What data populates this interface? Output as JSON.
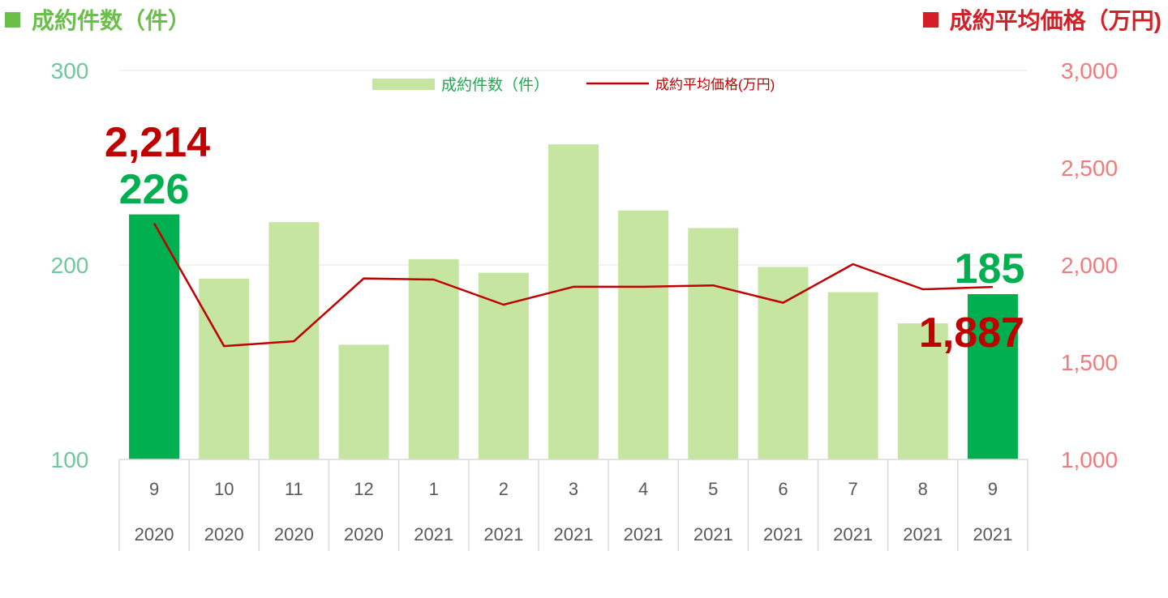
{
  "header": {
    "left_title": "成約件数（件）",
    "right_title": "成約平均価格（万円)"
  },
  "colors": {
    "bar": "#c5e5a0",
    "bar_highlight": "#00b050",
    "line": "#c00000",
    "left_axis": "#6cc99b",
    "right_axis": "#f07b7b"
  },
  "chart_data": {
    "type": "bar",
    "title": "",
    "categories": [
      "9",
      "10",
      "11",
      "12",
      "1",
      "2",
      "3",
      "4",
      "5",
      "6",
      "7",
      "8",
      "9"
    ],
    "years": [
      "2020",
      "2020",
      "2020",
      "2020",
      "2021",
      "2021",
      "2021",
      "2021",
      "2021",
      "2021",
      "2021",
      "2021",
      "2021"
    ],
    "series": [
      {
        "name": "成約件数(件)",
        "type": "bar",
        "axis": "left",
        "values": [
          226,
          193,
          222,
          159,
          203,
          196,
          262,
          228,
          219,
          199,
          186,
          170,
          185
        ],
        "highlight_indices": [
          0,
          12
        ]
      },
      {
        "name": "成約平均価格(万円)",
        "type": "line",
        "axis": "right",
        "values": [
          2214,
          1583,
          1608,
          1931,
          1925,
          1796,
          1888,
          1888,
          1895,
          1806,
          2004,
          1875,
          1887
        ]
      }
    ],
    "left_axis": {
      "ylim": [
        100,
        300
      ],
      "ticks": [
        "100",
        "200",
        "300"
      ]
    },
    "right_axis": {
      "ylim": [
        1000,
        3000
      ],
      "ticks": [
        "1,000",
        "1,500",
        "2,000",
        "2,500",
        "3,000"
      ]
    },
    "legend": {
      "bar_label": "成約件数（件）",
      "line_label": "成約平均価格(万円)",
      "position": "top-center"
    },
    "annotations": {
      "first_price": "2,214",
      "first_count": "226",
      "last_count": "185",
      "last_price": "1,887"
    },
    "grid": true
  }
}
